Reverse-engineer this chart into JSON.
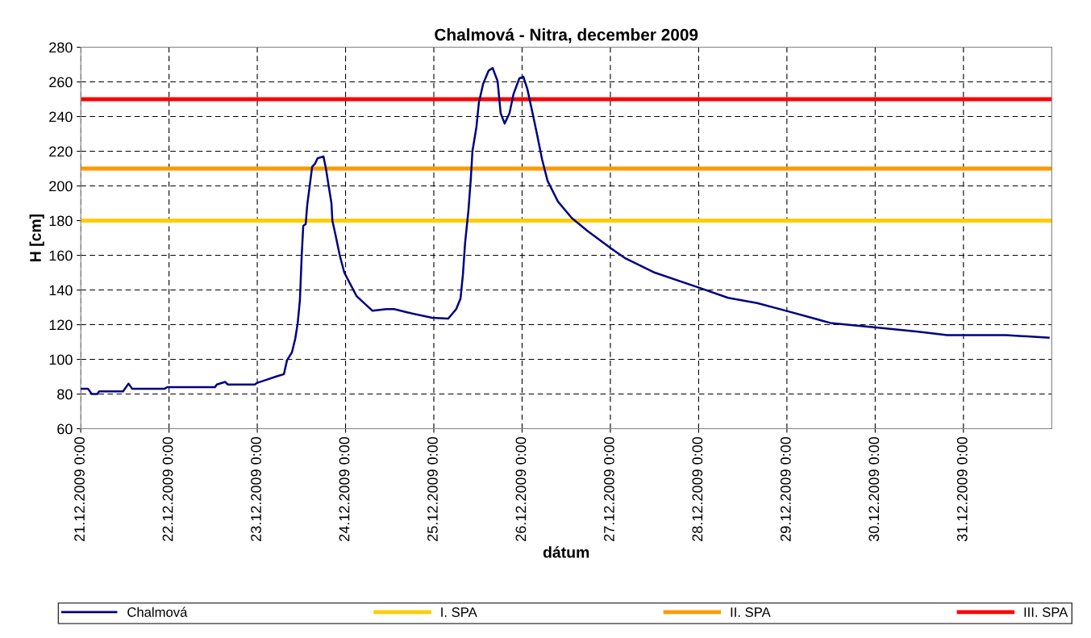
{
  "chart_data": {
    "type": "line",
    "title": "Chalmová - Nitra, december 2009",
    "xlabel": "dátum",
    "ylabel": "H [cm]",
    "xlim": [
      "2009-12-21T00:00",
      "2010-01-01T00:00"
    ],
    "xticks": [
      {
        "value": "2009-12-21T00:00",
        "label": "21.12.2009 0:00"
      },
      {
        "value": "2009-12-22T00:00",
        "label": "22.12.2009 0:00"
      },
      {
        "value": "2009-12-23T00:00",
        "label": "23.12.2009 0:00"
      },
      {
        "value": "2009-12-24T00:00",
        "label": "24.12.2009 0:00"
      },
      {
        "value": "2009-12-25T00:00",
        "label": "25.12.2009 0:00"
      },
      {
        "value": "2009-12-26T00:00",
        "label": "26.12.2009 0:00"
      },
      {
        "value": "2009-12-27T00:00",
        "label": "27.12.2009 0:00"
      },
      {
        "value": "2009-12-28T00:00",
        "label": "28.12.2009 0:00"
      },
      {
        "value": "2009-12-29T00:00",
        "label": "29.12.2009 0:00"
      },
      {
        "value": "2009-12-30T00:00",
        "label": "30.12.2009 0:00"
      },
      {
        "value": "2009-12-31T00:00",
        "label": "31.12.2009 0:00"
      }
    ],
    "ylim": [
      60,
      280
    ],
    "yticks": [
      60,
      80,
      100,
      120,
      140,
      160,
      180,
      200,
      220,
      240,
      260,
      280
    ],
    "grid": true,
    "legend": "bottom",
    "marker": "none",
    "line_style": "solid",
    "series": [
      {
        "name": "Chalmová",
        "color": "#000080",
        "x": [
          "2009-12-21T00:00",
          "2009-12-21T02:00",
          "2009-12-21T03:00",
          "2009-12-21T04:30",
          "2009-12-21T05:00",
          "2009-12-21T11:30",
          "2009-12-21T13:00",
          "2009-12-21T14:00",
          "2009-12-21T22:45",
          "2009-12-21T23:30",
          "2009-12-22T12:30",
          "2009-12-22T13:00",
          "2009-12-22T15:15",
          "2009-12-22T16:00",
          "2009-12-22T23:20",
          "2009-12-23T00:00",
          "2009-12-23T02:10",
          "2009-12-23T05:00",
          "2009-12-23T07:15",
          "2009-12-23T08:05",
          "2009-12-23T09:25",
          "2009-12-23T10:20",
          "2009-12-23T11:00",
          "2009-12-23T11:35",
          "2009-12-23T12:05",
          "2009-12-23T12:30",
          "2009-12-23T13:10",
          "2009-12-23T13:35",
          "2009-12-23T14:15",
          "2009-12-23T14:55",
          "2009-12-23T15:45",
          "2009-12-23T16:25",
          "2009-12-23T18:00",
          "2009-12-23T18:40",
          "2009-12-23T19:20",
          "2009-12-23T20:10",
          "2009-12-23T20:25",
          "2009-12-23T21:15",
          "2009-12-23T22:25",
          "2009-12-23T23:40",
          "2009-12-24T03:00",
          "2009-12-24T07:20",
          "2009-12-24T11:05",
          "2009-12-24T13:15",
          "2009-12-24T17:00",
          "2009-12-24T23:35",
          "2009-12-25T03:55",
          "2009-12-25T06:05",
          "2009-12-25T07:15",
          "2009-12-25T07:55",
          "2009-12-25T08:30",
          "2009-12-25T09:25",
          "2009-12-25T10:05",
          "2009-12-25T10:30",
          "2009-12-25T11:35",
          "2009-12-25T12:15",
          "2009-12-25T13:25",
          "2009-12-25T14:55",
          "2009-12-25T16:00",
          "2009-12-25T17:20",
          "2009-12-25T18:10",
          "2009-12-25T19:15",
          "2009-12-25T20:35",
          "2009-12-25T21:40",
          "2009-12-25T23:15",
          "2009-12-26T00:20",
          "2009-12-26T01:25",
          "2009-12-26T03:00",
          "2009-12-26T04:05",
          "2009-12-26T05:25",
          "2009-12-26T06:55",
          "2009-12-26T09:45",
          "2009-12-26T13:30",
          "2009-12-26T17:50",
          "2009-12-26T23:50",
          "2009-12-27T03:55",
          "2009-12-27T12:05",
          "2009-12-27T23:55",
          "2009-12-28T08:00",
          "2009-12-28T15:55",
          "2009-12-28T23:50",
          "2009-12-29T11:50",
          "2009-12-29T23:40",
          "2009-12-30T11:45",
          "2009-12-30T19:35",
          "2009-12-31T11:35",
          "2009-12-31T23:10"
        ],
        "values": [
          83,
          83,
          80,
          80,
          81.5,
          81.5,
          86,
          83,
          83,
          84,
          84,
          85.5,
          87,
          85.5,
          85.5,
          86.5,
          88,
          90,
          91.5,
          99.5,
          104,
          112,
          121,
          134,
          160,
          177,
          178,
          189,
          200,
          211,
          213,
          216,
          217,
          210,
          201,
          190,
          180,
          172,
          160,
          150,
          136.5,
          128,
          129,
          129,
          127,
          124,
          123.5,
          129,
          135,
          149,
          167,
          186,
          205,
          220,
          234,
          248,
          259,
          266.5,
          268,
          260.5,
          242,
          236,
          242,
          253,
          262,
          263,
          256,
          240.5,
          229.5,
          215.5,
          203,
          191,
          181.5,
          174,
          164.5,
          158.5,
          150,
          141.5,
          135.5,
          132.5,
          128,
          121,
          118.5,
          116,
          114,
          114,
          112.5
        ]
      }
    ],
    "ref_lines": [
      {
        "axis": "y",
        "value": 180,
        "label": "I. SPA",
        "color": "#ffcc00"
      },
      {
        "axis": "y",
        "value": 210,
        "label": "II. SPA",
        "color": "#ff9900"
      },
      {
        "axis": "y",
        "value": 250,
        "label": "III. SPA",
        "color": "#ff0000"
      }
    ]
  }
}
